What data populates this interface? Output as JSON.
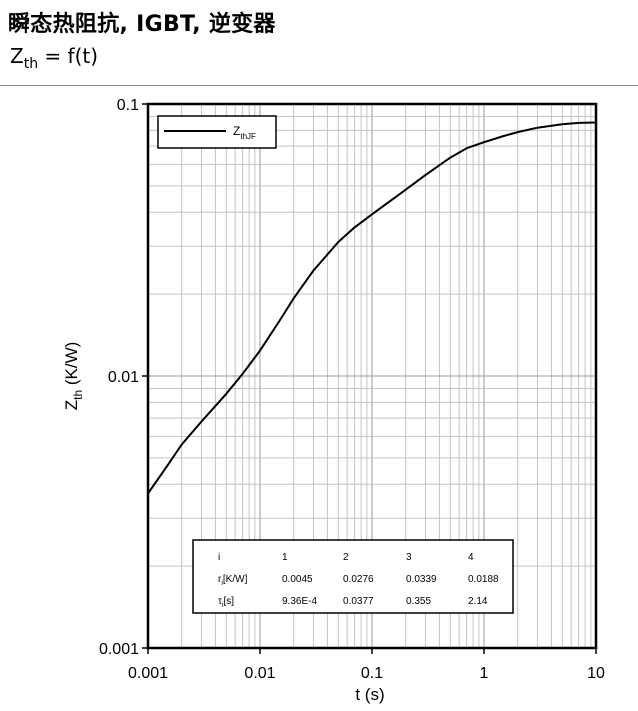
{
  "header": {
    "title": "瞬态热阻抗, IGBT, 逆变器",
    "subtitle_main": "Z",
    "subtitle_sub": "th",
    "subtitle_tail": " = f(t)"
  },
  "chart_data": {
    "type": "line",
    "x_scale": "log",
    "y_scale": "log",
    "xlim": [
      0.001,
      10
    ],
    "ylim": [
      0.001,
      0.1
    ],
    "x_ticks": [
      "0.001",
      "0.01",
      "0.1",
      "1",
      "10"
    ],
    "y_ticks": [
      "0.001",
      "0.01",
      "0.1"
    ],
    "xlabel": "t (s)",
    "ylabel_main": "Z",
    "ylabel_sub": "th",
    "ylabel_tail": " (K/W)",
    "grid": true,
    "legend_position": "top-left",
    "series": [
      {
        "name_main": "Z",
        "name_sub": "thJF",
        "color": "#000000",
        "x": [
          0.001,
          0.0015,
          0.002,
          0.003,
          0.005,
          0.007,
          0.01,
          0.015,
          0.02,
          0.03,
          0.05,
          0.07,
          0.1,
          0.15,
          0.2,
          0.3,
          0.5,
          0.7,
          1,
          1.5,
          2,
          3,
          5,
          7,
          10
        ],
        "y": [
          0.0037,
          0.0047,
          0.0056,
          0.0068,
          0.0086,
          0.0102,
          0.0124,
          0.016,
          0.0193,
          0.0244,
          0.0311,
          0.0352,
          0.0393,
          0.0444,
          0.0484,
          0.0548,
          0.0635,
          0.0688,
          0.0724,
          0.0763,
          0.0788,
          0.0818,
          0.0842,
          0.0852,
          0.0855
        ]
      }
    ]
  },
  "table": {
    "headers": [
      "i",
      "1",
      "2",
      "3",
      "4"
    ],
    "rows": [
      {
        "label_main": "r",
        "label_sub": "i",
        "label_tail": "[K/W]",
        "values": [
          "0.0045",
          "0.0276",
          "0.0339",
          "0.0188"
        ]
      },
      {
        "label_main": "τ",
        "label_sub": "i",
        "label_tail": "[s]",
        "values": [
          "9.36E-4",
          "0.0377",
          "0.355",
          "2.14"
        ]
      }
    ]
  }
}
